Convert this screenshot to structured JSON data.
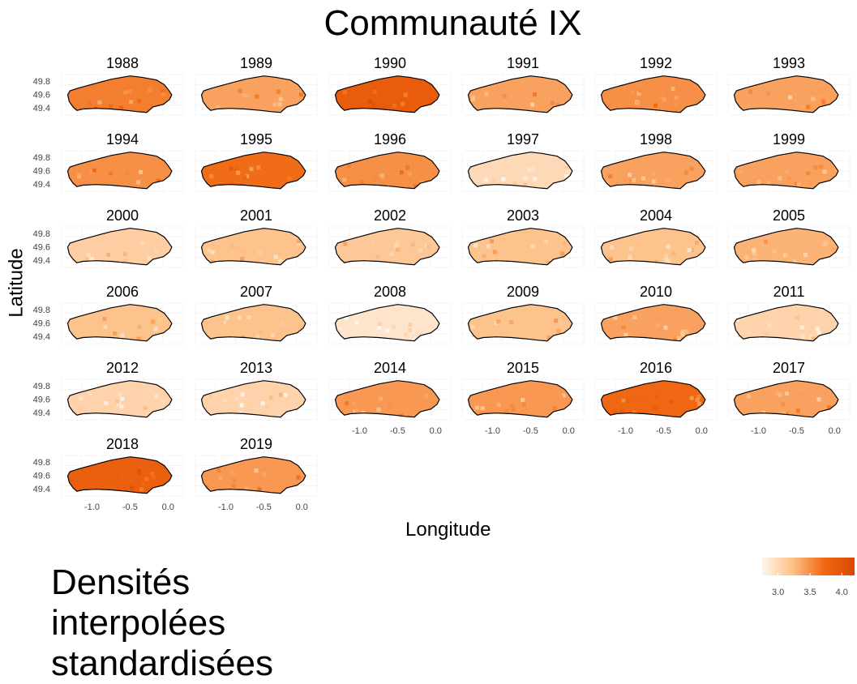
{
  "title": "Communauté IX",
  "chart_data": {
    "type": "heatmap",
    "title": "Communauté IX",
    "xlabel": "Longitude",
    "ylabel": "Latitude",
    "facet_titles": [
      "1988",
      "1989",
      "1990",
      "1991",
      "1992",
      "1993",
      "1994",
      "1995",
      "1996",
      "1997",
      "1998",
      "1999",
      "2000",
      "2001",
      "2002",
      "2003",
      "2004",
      "2005",
      "2006",
      "2007",
      "2008",
      "2009",
      "2010",
      "2011",
      "2012",
      "2013",
      "2014",
      "2015",
      "2016",
      "2017",
      "2018",
      "2019"
    ],
    "facet_mean_values": [
      3.6,
      3.4,
      3.9,
      3.4,
      3.5,
      3.4,
      3.5,
      3.7,
      3.5,
      3.0,
      3.4,
      3.4,
      3.1,
      3.2,
      3.15,
      3.2,
      3.2,
      3.3,
      3.2,
      3.2,
      2.9,
      3.2,
      3.4,
      3.05,
      3.05,
      3.05,
      3.45,
      3.45,
      3.75,
      3.4,
      3.85,
      3.45
    ],
    "x_ticks": [
      "-1.0",
      "-0.5",
      "0.0"
    ],
    "y_ticks": [
      "49.8",
      "49.6",
      "49.4"
    ],
    "xlim": [
      -1.4,
      0.2
    ],
    "ylim": [
      49.3,
      49.9
    ],
    "grid": true,
    "legend": {
      "title": "Densités interpolées standardisées",
      "ticks": [
        "3.0",
        "3.5",
        "4.0"
      ],
      "range": [
        2.75,
        4.2
      ],
      "position": "bottom-right",
      "colors": [
        "#fff5eb",
        "#fdbf86",
        "#f16913",
        "#d94801"
      ]
    }
  }
}
